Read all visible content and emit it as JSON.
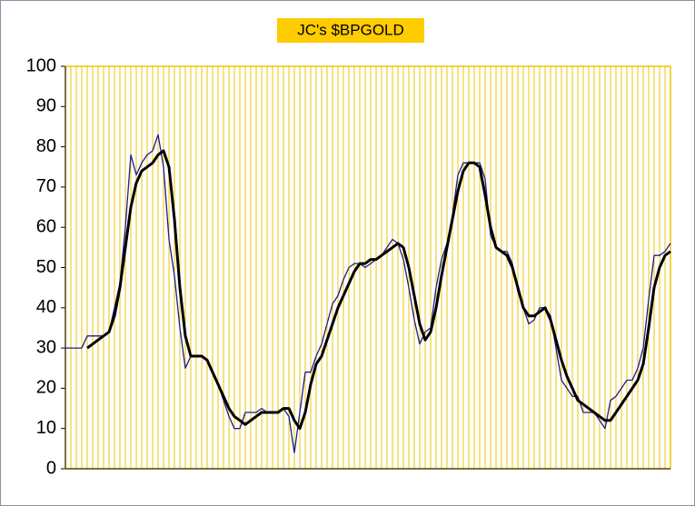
{
  "chart_data": {
    "type": "line",
    "title": "JC's $BPGOLD",
    "categories": [
      null,
      null,
      null,
      null,
      null,
      null,
      null,
      null,
      null,
      null,
      null,
      null,
      null,
      null,
      null,
      null,
      null,
      null,
      null,
      null,
      null,
      null,
      null,
      null,
      null,
      null,
      null,
      null,
      null,
      null,
      null,
      null,
      null,
      null,
      null,
      null,
      null,
      null,
      null,
      null,
      null,
      null,
      null,
      null,
      null,
      null,
      null,
      null,
      null,
      null,
      null,
      null,
      null,
      null,
      null,
      null,
      null,
      null,
      null,
      null,
      null,
      null,
      null,
      null,
      null,
      null,
      null,
      null,
      null,
      null,
      null,
      null,
      null,
      null,
      null,
      null,
      null,
      null,
      null,
      null,
      null,
      null,
      null,
      null,
      null,
      null,
      null,
      null,
      null,
      null,
      null,
      null,
      null,
      null,
      null,
      null,
      null,
      null,
      null,
      null,
      null,
      null,
      null,
      null,
      null,
      null,
      null,
      null,
      null,
      null,
      null,
      null
    ],
    "series": [
      {
        "color": "#1c1c8f",
        "values": [
          30,
          30,
          30,
          30,
          33,
          33,
          33,
          33,
          34,
          40,
          46,
          60,
          78,
          73,
          76,
          78,
          79,
          83,
          75,
          57,
          48,
          35,
          25,
          28,
          28,
          28,
          27,
          24,
          21,
          17,
          13,
          10,
          10,
          14,
          14,
          14,
          15,
          14,
          14,
          14,
          15,
          13,
          4,
          14,
          24,
          24,
          28,
          31,
          36,
          41,
          43,
          47,
          50,
          51,
          51,
          50,
          51,
          52,
          53,
          55,
          57,
          56,
          52,
          45,
          37,
          31,
          34,
          35,
          45,
          52,
          56,
          63,
          73,
          76,
          76,
          76,
          76,
          72,
          58,
          55,
          54,
          54,
          51,
          44,
          40,
          36,
          37,
          40,
          40,
          38,
          30,
          22,
          20,
          18,
          18,
          14,
          14,
          14,
          12,
          10,
          17,
          18,
          20,
          22,
          22,
          25,
          30,
          42,
          53,
          53,
          54,
          56
        ]
      },
      {
        "color": "#000000",
        "values": [
          null,
          null,
          null,
          null,
          30,
          31,
          32,
          33,
          34,
          38,
          45,
          55,
          65,
          71,
          74,
          75,
          76,
          78,
          79,
          75,
          62,
          45,
          33,
          28,
          28,
          28,
          27,
          24,
          21,
          18,
          15,
          13,
          12,
          11,
          12,
          13,
          14,
          14,
          14,
          14,
          15,
          15,
          12,
          10,
          14,
          21,
          26,
          28,
          32,
          36,
          40,
          43,
          46,
          49,
          51,
          51,
          52,
          52,
          53,
          54,
          55,
          56,
          55,
          50,
          43,
          36,
          32,
          34,
          40,
          48,
          55,
          62,
          69,
          74,
          76,
          76,
          75,
          68,
          60,
          55,
          54,
          53,
          50,
          45,
          40,
          38,
          38,
          39,
          40,
          37,
          32,
          27,
          23,
          20,
          17,
          16,
          15,
          14,
          13,
          12,
          12,
          14,
          16,
          18,
          20,
          22,
          26,
          35,
          45,
          50,
          53,
          54
        ]
      }
    ],
    "ylim": [
      0,
      100
    ],
    "yticks": [
      0,
      10,
      20,
      30,
      40,
      50,
      60,
      70,
      80,
      90,
      100
    ],
    "grid": true,
    "grid_color": "#f2c500",
    "title_background": "#ffcc00"
  }
}
